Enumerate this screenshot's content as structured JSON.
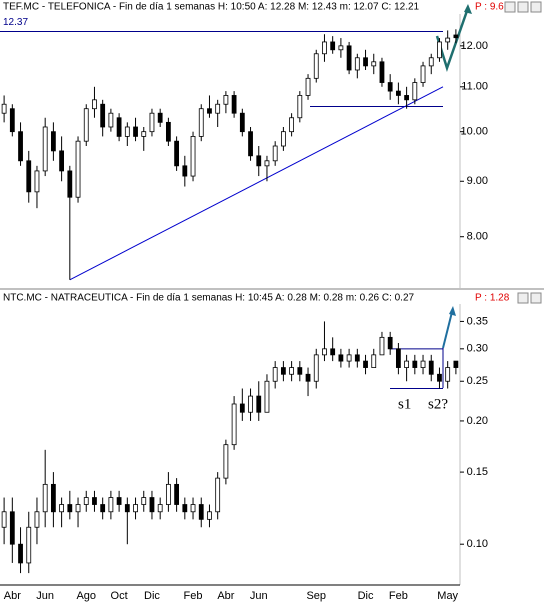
{
  "chart_data": [
    {
      "type": "candlestick",
      "title": "TEF.MC - TELEFONICA - Fin de día 1 semanas H: 10:50 A: 12.28 M: 12.43 m: 12.07 C: 12.21",
      "price_label": "P : 9.6",
      "log_scale": true,
      "ylim": [
        7.22,
        12.84
      ],
      "yticks": [
        {
          "value": 12,
          "label": "12.00"
        },
        {
          "value": 11,
          "label": "11.00"
        },
        {
          "value": 10,
          "label": "10.00"
        },
        {
          "value": 9,
          "label": "9.00"
        },
        {
          "value": 8,
          "label": "8.00"
        }
      ],
      "hlines": [
        {
          "value": 12.37,
          "label": "12.37",
          "color": "#00008b"
        },
        {
          "value": 10.55,
          "color": "#00008b"
        }
      ],
      "trendline": {
        "values": [
          7.3,
          11.0
        ],
        "color": "#0000cd"
      },
      "open": [
        10.4,
        10.5,
        10.0,
        9.4,
        8.8,
        9.2,
        10.0,
        9.6,
        9.2,
        8.7,
        9.8,
        10.5,
        10.6,
        10.1,
        10.3,
        9.9,
        10.1,
        9.9,
        10.0,
        10.4,
        10.2,
        9.8,
        9.3,
        9.1,
        9.9,
        10.5,
        10.4,
        10.6,
        10.8,
        10.4,
        10.0,
        9.5,
        9.3,
        9.4,
        9.7,
        10.0,
        10.3,
        10.8,
        11.2,
        11.8,
        12.1,
        11.9,
        12.0,
        11.4,
        11.7,
        11.5,
        11.6,
        11.1,
        10.9,
        10.8,
        10.7,
        11.1,
        11.5,
        11.7,
        12.1,
        12.28
      ],
      "high": [
        10.8,
        10.6,
        10.2,
        9.6,
        9.3,
        10.3,
        10.2,
        9.9,
        9.3,
        9.9,
        10.6,
        11.0,
        10.7,
        10.5,
        10.4,
        10.2,
        10.3,
        10.1,
        10.5,
        10.5,
        10.3,
        9.9,
        9.5,
        10.0,
        10.6,
        10.8,
        10.7,
        10.9,
        10.9,
        10.5,
        10.1,
        9.7,
        9.5,
        9.8,
        10.1,
        10.4,
        10.9,
        11.3,
        11.9,
        12.3,
        12.25,
        12.2,
        12.1,
        11.8,
        11.9,
        11.8,
        11.7,
        11.3,
        11.1,
        11.0,
        11.2,
        11.6,
        11.8,
        12.2,
        12.4,
        12.43
      ],
      "low": [
        10.2,
        9.9,
        9.3,
        8.6,
        8.5,
        9.1,
        9.4,
        9.0,
        7.3,
        8.6,
        9.7,
        10.3,
        9.9,
        10.0,
        9.8,
        9.7,
        9.8,
        9.6,
        9.9,
        10.1,
        9.7,
        9.2,
        8.9,
        9.0,
        9.8,
        10.3,
        10.1,
        10.4,
        10.3,
        9.9,
        9.4,
        9.1,
        9.0,
        9.3,
        9.6,
        9.9,
        10.2,
        10.7,
        11.1,
        11.6,
        11.8,
        11.7,
        11.3,
        11.2,
        11.4,
        11.3,
        11.0,
        10.7,
        10.6,
        10.5,
        10.6,
        11.0,
        11.3,
        11.6,
        11.9,
        12.07
      ],
      "close": [
        10.6,
        10.0,
        9.4,
        8.8,
        9.2,
        10.1,
        9.6,
        9.2,
        8.7,
        9.8,
        10.5,
        10.7,
        10.1,
        10.4,
        9.9,
        10.1,
        9.9,
        10.0,
        10.4,
        10.2,
        9.8,
        9.3,
        9.1,
        9.9,
        10.5,
        10.4,
        10.6,
        10.8,
        10.4,
        10.0,
        9.5,
        9.3,
        9.4,
        9.7,
        10.0,
        10.3,
        10.8,
        11.2,
        11.8,
        12.1,
        11.9,
        12.0,
        11.4,
        11.7,
        11.5,
        11.6,
        11.1,
        10.9,
        10.8,
        10.7,
        11.1,
        11.5,
        11.7,
        12.1,
        12.2,
        12.21
      ]
    },
    {
      "type": "candlestick",
      "title": "NTC.MC - NATRACEUTICA - Fin de día 1 semanas H: 10:45 A: 0.28 M: 0.28 m: 0.26 C: 0.27",
      "price_label": "P : 1.28",
      "log_scale": true,
      "ylim": [
        0.0795,
        0.386
      ],
      "yticks": [
        0.35,
        {
          "value": 0.3,
          "label": "0.30"
        },
        0.25,
        {
          "value": 0.2,
          "label": "0.20"
        },
        0.15,
        {
          "value": 0.1,
          "label": "0.10"
        }
      ],
      "hlines": [
        {
          "value": 0.3,
          "color": "#00008b"
        },
        {
          "value": 0.24,
          "color": "#00008b"
        }
      ],
      "annotations": [
        "s1",
        "s2?"
      ],
      "categories": [
        null,
        "Abr",
        null,
        null,
        null,
        "Jun",
        null,
        null,
        null,
        null,
        "Ago",
        null,
        null,
        null,
        "Oct",
        null,
        null,
        null,
        "Dic",
        null,
        null,
        null,
        null,
        "Feb",
        null,
        null,
        null,
        "Abr",
        null,
        null,
        null,
        "Jun",
        null,
        null,
        null,
        null,
        null,
        null,
        "Sep",
        null,
        null,
        null,
        null,
        null,
        "Dic",
        null,
        null,
        null,
        "Feb",
        null,
        null,
        null,
        null,
        null,
        "May",
        null
      ],
      "open": [
        0.11,
        0.12,
        0.1,
        0.09,
        0.11,
        0.12,
        0.14,
        0.12,
        0.125,
        0.12,
        0.125,
        0.13,
        0.125,
        0.12,
        0.13,
        0.125,
        0.12,
        0.125,
        0.13,
        0.12,
        0.125,
        0.14,
        0.125,
        0.12,
        0.125,
        0.115,
        0.12,
        0.145,
        0.175,
        0.22,
        0.21,
        0.23,
        0.21,
        0.25,
        0.27,
        0.26,
        0.27,
        0.26,
        0.25,
        0.29,
        0.3,
        0.29,
        0.28,
        0.29,
        0.28,
        0.27,
        0.29,
        0.32,
        0.3,
        0.27,
        0.28,
        0.27,
        0.28,
        0.26,
        0.25,
        0.28
      ],
      "high": [
        0.13,
        0.13,
        0.11,
        0.12,
        0.13,
        0.17,
        0.15,
        0.13,
        0.135,
        0.13,
        0.135,
        0.135,
        0.13,
        0.135,
        0.135,
        0.13,
        0.13,
        0.135,
        0.135,
        0.13,
        0.15,
        0.145,
        0.13,
        0.13,
        0.13,
        0.125,
        0.15,
        0.18,
        0.23,
        0.24,
        0.24,
        0.25,
        0.26,
        0.28,
        0.28,
        0.28,
        0.28,
        0.27,
        0.3,
        0.35,
        0.32,
        0.3,
        0.3,
        0.3,
        0.29,
        0.3,
        0.33,
        0.33,
        0.31,
        0.29,
        0.29,
        0.29,
        0.29,
        0.27,
        0.28,
        0.28
      ],
      "low": [
        0.1,
        0.09,
        0.085,
        0.085,
        0.1,
        0.11,
        0.11,
        0.11,
        0.115,
        0.11,
        0.12,
        0.12,
        0.115,
        0.115,
        0.12,
        0.1,
        0.115,
        0.12,
        0.115,
        0.115,
        0.12,
        0.12,
        0.115,
        0.115,
        0.11,
        0.11,
        0.115,
        0.14,
        0.17,
        0.2,
        0.2,
        0.2,
        0.21,
        0.24,
        0.25,
        0.25,
        0.25,
        0.23,
        0.24,
        0.28,
        0.28,
        0.27,
        0.27,
        0.27,
        0.26,
        0.27,
        0.29,
        0.29,
        0.26,
        0.25,
        0.26,
        0.26,
        0.25,
        0.24,
        0.24,
        0.26
      ],
      "close": [
        0.12,
        0.1,
        0.09,
        0.11,
        0.12,
        0.14,
        0.12,
        0.125,
        0.12,
        0.125,
        0.13,
        0.125,
        0.12,
        0.13,
        0.125,
        0.12,
        0.125,
        0.13,
        0.12,
        0.125,
        0.14,
        0.125,
        0.12,
        0.125,
        0.115,
        0.12,
        0.145,
        0.175,
        0.22,
        0.21,
        0.23,
        0.21,
        0.25,
        0.27,
        0.26,
        0.27,
        0.26,
        0.25,
        0.29,
        0.3,
        0.29,
        0.28,
        0.29,
        0.28,
        0.27,
        0.29,
        0.32,
        0.3,
        0.27,
        0.28,
        0.27,
        0.28,
        0.26,
        0.25,
        0.27,
        0.27
      ]
    }
  ]
}
